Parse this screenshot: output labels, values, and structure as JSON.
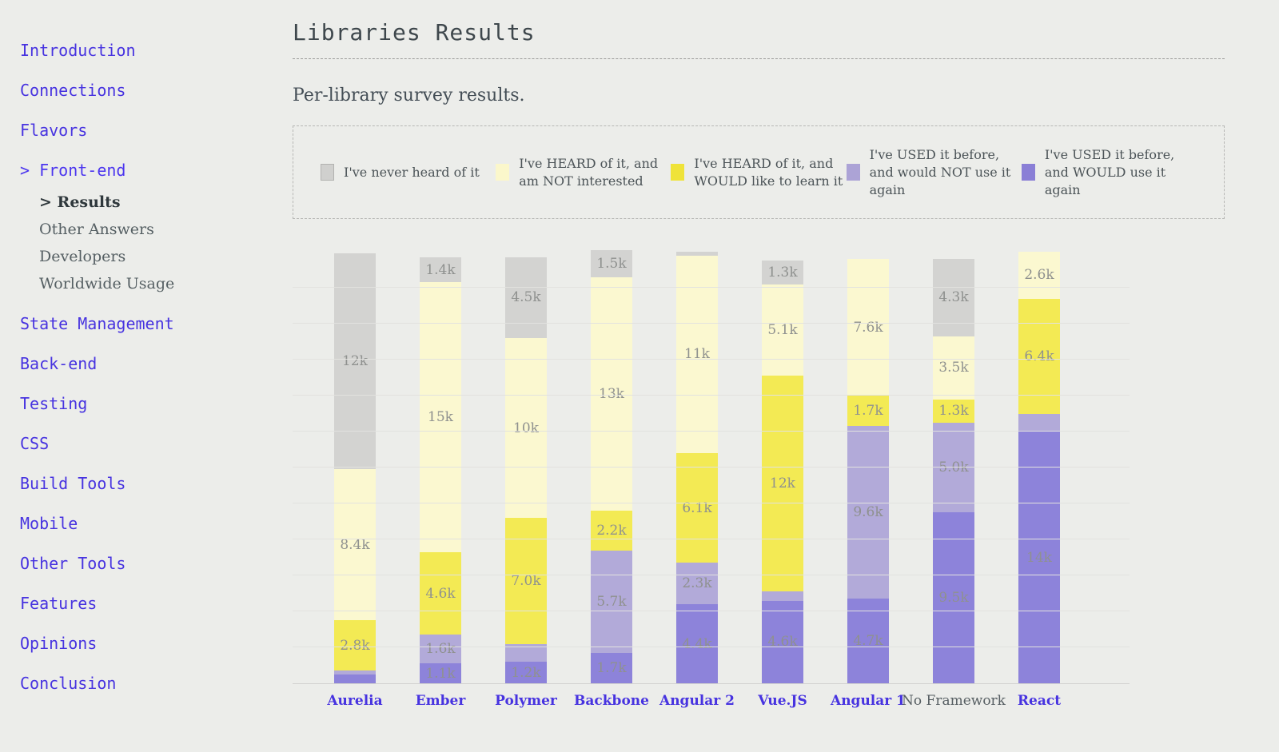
{
  "page": {
    "background": "#ecedea",
    "accent": "#4733e0"
  },
  "sidebar": {
    "items": [
      {
        "label": "Introduction"
      },
      {
        "label": "Connections"
      },
      {
        "label": "Flavors"
      },
      {
        "label": "Front-end",
        "active": true,
        "prefix": "> ",
        "children": [
          {
            "label": "Results",
            "active": true,
            "prefix": "> "
          },
          {
            "label": "Other Answers"
          },
          {
            "label": "Developers"
          },
          {
            "label": "Worldwide Usage"
          }
        ]
      },
      {
        "label": "State Management"
      },
      {
        "label": "Back-end"
      },
      {
        "label": "Testing"
      },
      {
        "label": "CSS"
      },
      {
        "label": "Build Tools"
      },
      {
        "label": "Mobile"
      },
      {
        "label": "Other Tools"
      },
      {
        "label": "Features"
      },
      {
        "label": "Opinions"
      },
      {
        "label": "Conclusion"
      }
    ]
  },
  "header": {
    "title": "Libraries Results",
    "subtitle": "Per-library survey results."
  },
  "legend": {
    "items": [
      {
        "label": "I've never heard of it",
        "color": "#d0d0ce",
        "border": "#b2b2b0"
      },
      {
        "label": "I've HEARD of it, and am NOT interested",
        "color": "#fbf7cb",
        "border": "#fbf7cb"
      },
      {
        "label": "I've HEARD of it, and WOULD like to learn it",
        "color": "#efe339",
        "border": "#efe339"
      },
      {
        "label": "I've USED it before, and would NOT use it again",
        "color": "#aca3d6",
        "border": "#aca3d6"
      },
      {
        "label": "I've USED it before, and WOULD use it again",
        "color": "#8a7fd6",
        "border": "#8a7fd6"
      }
    ]
  },
  "chart_data": {
    "type": "bar",
    "stacked": true,
    "title": "Libraries Results",
    "unit": "thousands of responses",
    "ylim": [
      0,
      24
    ],
    "gridline_step": 2,
    "grid": true,
    "legend_position": "top",
    "categories": [
      {
        "label": "Aurelia",
        "link": true
      },
      {
        "label": "Ember",
        "link": true
      },
      {
        "label": "Polymer",
        "link": true
      },
      {
        "label": "Backbone",
        "link": true
      },
      {
        "label": "Angular 2",
        "link": true
      },
      {
        "label": "Vue.JS",
        "link": true
      },
      {
        "label": "Angular 1",
        "link": true
      },
      {
        "label": "No Framework",
        "link": false
      },
      {
        "label": "React",
        "link": true
      }
    ],
    "series": [
      {
        "name": "I've USED it before, and WOULD use it again",
        "color": "#8d83da",
        "values": [
          0.5,
          1.1,
          1.2,
          1.7,
          4.4,
          4.6,
          4.7,
          9.5,
          14
        ],
        "labels": [
          null,
          "1.1k",
          "1.2k",
          "1.7k",
          "4.4k",
          "4.6k",
          "4.7k",
          "9.5k",
          "14k"
        ]
      },
      {
        "name": "I've USED it before, and would NOT use it again",
        "color": "#b2aad9",
        "values": [
          0.2,
          1.6,
          1.0,
          5.7,
          2.3,
          0.5,
          9.6,
          5.0,
          1.0
        ],
        "labels": [
          null,
          "1.6k",
          null,
          "5.7k",
          "2.3k",
          null,
          "9.6k",
          "5.0k",
          null
        ]
      },
      {
        "name": "I've HEARD of it, and WOULD like to learn it",
        "color": "#f3ea54",
        "values": [
          2.8,
          4.6,
          7.0,
          2.2,
          6.1,
          12,
          1.7,
          1.3,
          6.4
        ],
        "labels": [
          "2.8k",
          "4.6k",
          "7.0k",
          "2.2k",
          "6.1k",
          "12k",
          "1.7k",
          "1.3k",
          "6.4k"
        ]
      },
      {
        "name": "I've HEARD of it, and am NOT interested",
        "color": "#fbf8d0",
        "values": [
          8.4,
          15,
          10,
          13,
          11,
          5.1,
          7.6,
          3.5,
          2.6
        ],
        "labels": [
          "8.4k",
          "15k",
          "10k",
          "13k",
          "11k",
          "5.1k",
          "7.6k",
          "3.5k",
          "2.6k"
        ]
      },
      {
        "name": "I've never heard of it",
        "color": "#d3d3d1",
        "values": [
          12,
          1.4,
          4.5,
          1.5,
          0.2,
          1.3,
          0,
          4.3,
          0
        ],
        "labels": [
          "12k",
          "1.4k",
          "4.5k",
          "1.5k",
          null,
          "1.3k",
          null,
          "4.3k",
          null
        ]
      }
    ]
  }
}
